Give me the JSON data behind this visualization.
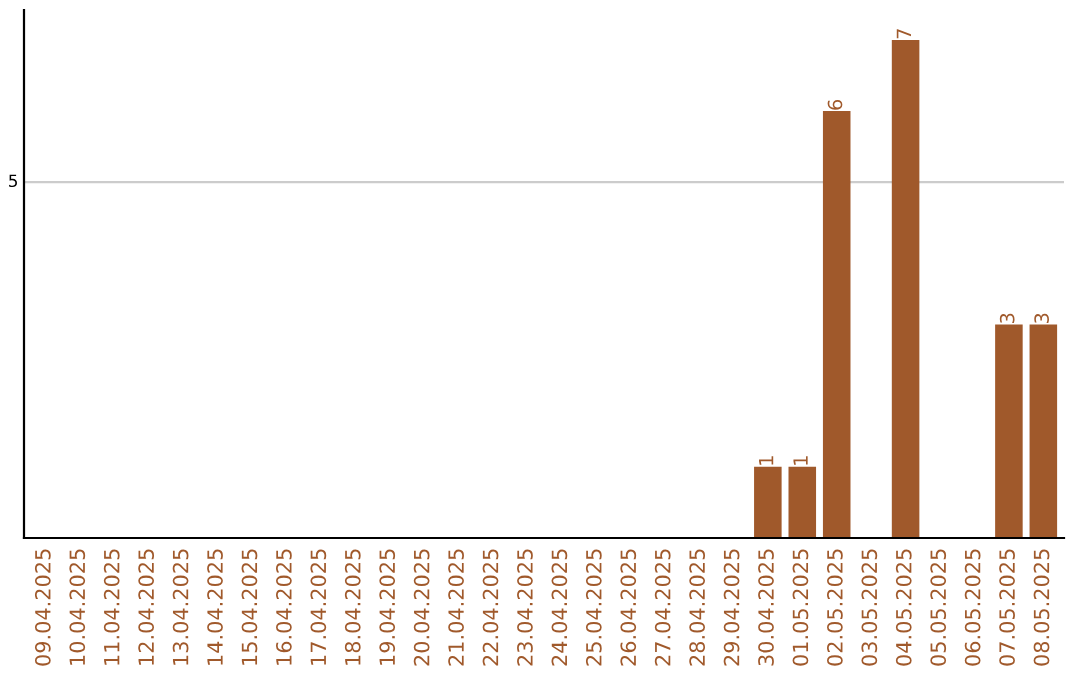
{
  "chart_data": {
    "type": "bar",
    "categories": [
      "09.04.2025",
      "10.04.2025",
      "11.04.2025",
      "12.04.2025",
      "13.04.2025",
      "14.04.2025",
      "15.04.2025",
      "16.04.2025",
      "17.04.2025",
      "18.04.2025",
      "19.04.2025",
      "20.04.2025",
      "21.04.2025",
      "22.04.2025",
      "23.04.2025",
      "24.04.2025",
      "25.04.2025",
      "26.04.2025",
      "27.04.2025",
      "28.04.2025",
      "29.04.2025",
      "30.04.2025",
      "01.05.2025",
      "02.05.2025",
      "03.05.2025",
      "04.05.2025",
      "05.05.2025",
      "06.05.2025",
      "07.05.2025",
      "08.05.2025"
    ],
    "values": [
      null,
      null,
      null,
      null,
      null,
      null,
      null,
      null,
      null,
      null,
      null,
      null,
      null,
      null,
      null,
      null,
      null,
      null,
      null,
      null,
      null,
      1,
      1,
      6,
      null,
      7,
      null,
      null,
      3,
      3
    ],
    "value_labels": [
      null,
      null,
      null,
      null,
      null,
      null,
      null,
      null,
      null,
      null,
      null,
      null,
      null,
      null,
      null,
      null,
      null,
      null,
      null,
      null,
      null,
      "1",
      "1",
      "6",
      null,
      "7",
      null,
      null,
      "3",
      "3"
    ],
    "color": "#a0592b",
    "ref_lines": [
      {
        "axis": "y",
        "value": 5,
        "label": "5",
        "color": "#cccccc"
      }
    ]
  }
}
